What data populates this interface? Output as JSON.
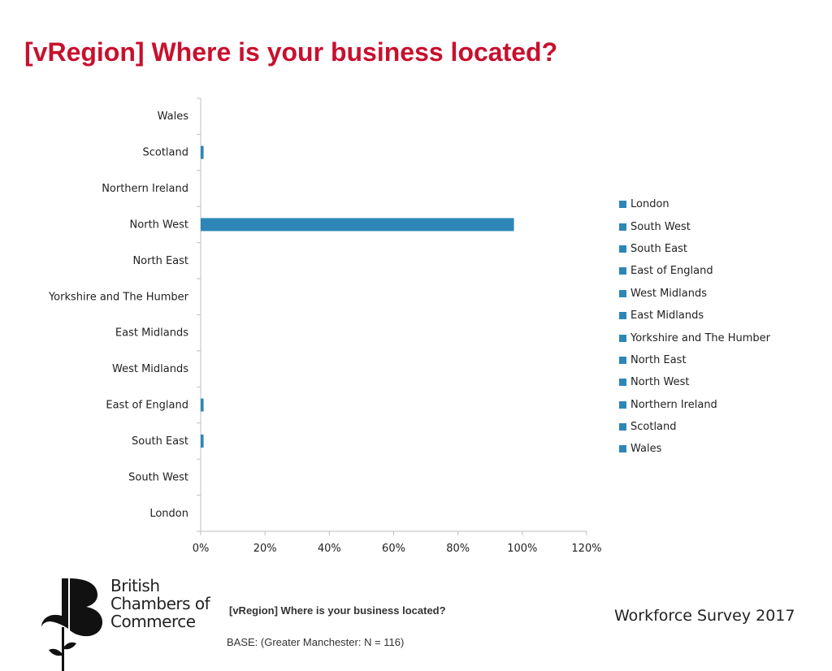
{
  "title": "[vRegion] Where is your business located?",
  "colors": {
    "title": "#c8102e",
    "bar": "#2e86b7",
    "axis": "#bfbfbf"
  },
  "chart_data": {
    "type": "bar",
    "orientation": "horizontal",
    "categories": [
      "London",
      "South West",
      "South East",
      "East of England",
      "West Midlands",
      "East Midlands",
      "Yorkshire and The Humber",
      "North East",
      "North West",
      "Northern Ireland",
      "Scotland",
      "Wales"
    ],
    "series": [
      {
        "name": "",
        "values": [
          0,
          0,
          0.9,
          0.9,
          0,
          0,
          0,
          0,
          97.4,
          0,
          0.9,
          0
        ]
      }
    ],
    "xlim": [
      0,
      120
    ],
    "xticks": [
      "0%",
      "20%",
      "40%",
      "60%",
      "80%",
      "100%",
      "120%"
    ],
    "legend": {
      "placement": "right",
      "items": [
        "London",
        "South West",
        "South East",
        "East of England",
        "West Midlands",
        "East Midlands",
        "Yorkshire and The Humber",
        "North East",
        "North West",
        "Northern Ireland",
        "Scotland",
        "Wales"
      ]
    },
    "grid": false
  },
  "footer": {
    "question": "[vRegion] Where is your business located?",
    "base": "BASE: (Greater Manchester: N = 116)",
    "survey": "Workforce Survey 2017"
  },
  "logo": {
    "lines": [
      "British",
      "Chambers of",
      "Commerce"
    ]
  }
}
